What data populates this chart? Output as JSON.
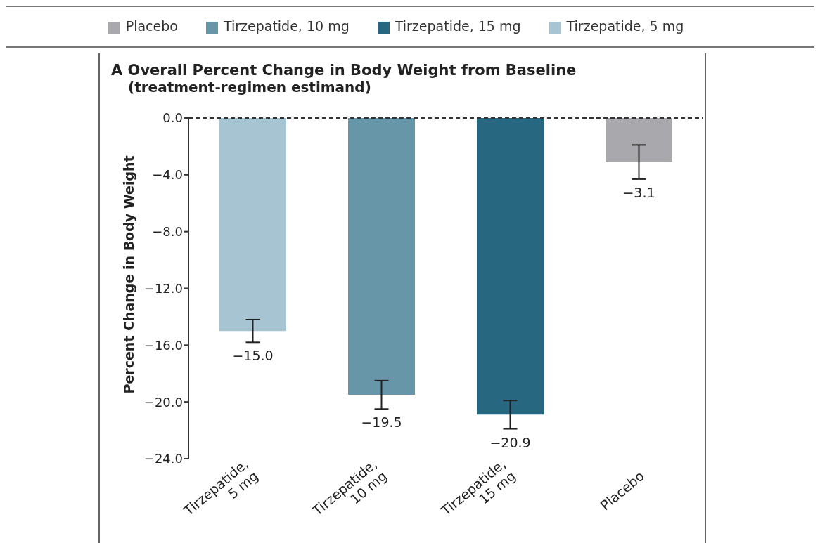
{
  "chart_data": {
    "type": "bar",
    "title": "A  Overall Percent Change in Body Weight from Baseline",
    "subtitle": "(treatment-regimen estimand)",
    "ylabel": "Percent Change in Body Weight",
    "categories": [
      "Tirzepatide, 5 mg",
      "Tirzepatide, 10 mg",
      "Tirzepatide, 15 mg",
      "Placebo"
    ],
    "stacked": true,
    "series": [
      {
        "name": "Tirzepatide, 5 mg",
        "color": "#a7c4d2",
        "values": [
          -15.0,
          null,
          null,
          null
        ],
        "errors": [
          0.8,
          null,
          null,
          null
        ],
        "value_labels": [
          "−15.0",
          null,
          null,
          null
        ]
      },
      {
        "name": "Tirzepatide, 10 mg",
        "color": "#6896a9",
        "values": [
          null,
          -19.5,
          null,
          null
        ],
        "errors": [
          null,
          1.0,
          null,
          null
        ],
        "value_labels": [
          null,
          "−19.5",
          null,
          null
        ]
      },
      {
        "name": "Tirzepatide, 15 mg",
        "color": "#276880",
        "values": [
          null,
          null,
          -20.9,
          null
        ],
        "errors": [
          null,
          null,
          1.0,
          null
        ],
        "value_labels": [
          null,
          null,
          "−20.9",
          null
        ]
      },
      {
        "name": "Placebo",
        "color": "#a9a9ad",
        "values": [
          null,
          null,
          null,
          -3.1
        ],
        "errors": [
          null,
          null,
          null,
          1.2
        ],
        "value_labels": [
          null,
          null,
          null,
          "−3.1"
        ]
      }
    ],
    "ylim": [
      -24,
      0
    ],
    "yticks": [
      {
        "value": 0,
        "label": "0.0"
      },
      {
        "value": -4,
        "label": "−4.0"
      },
      {
        "value": -8,
        "label": "−8.0"
      },
      {
        "value": -12,
        "label": "−12.0"
      },
      {
        "value": -16,
        "label": "−16.0"
      },
      {
        "value": -20,
        "label": "−20.0"
      },
      {
        "value": -24,
        "label": "−24.0"
      }
    ],
    "ref_lines": [
      {
        "axis": "y",
        "value": 0,
        "line_style": "dashed",
        "color": "#333333"
      }
    ],
    "legend": "top"
  }
}
